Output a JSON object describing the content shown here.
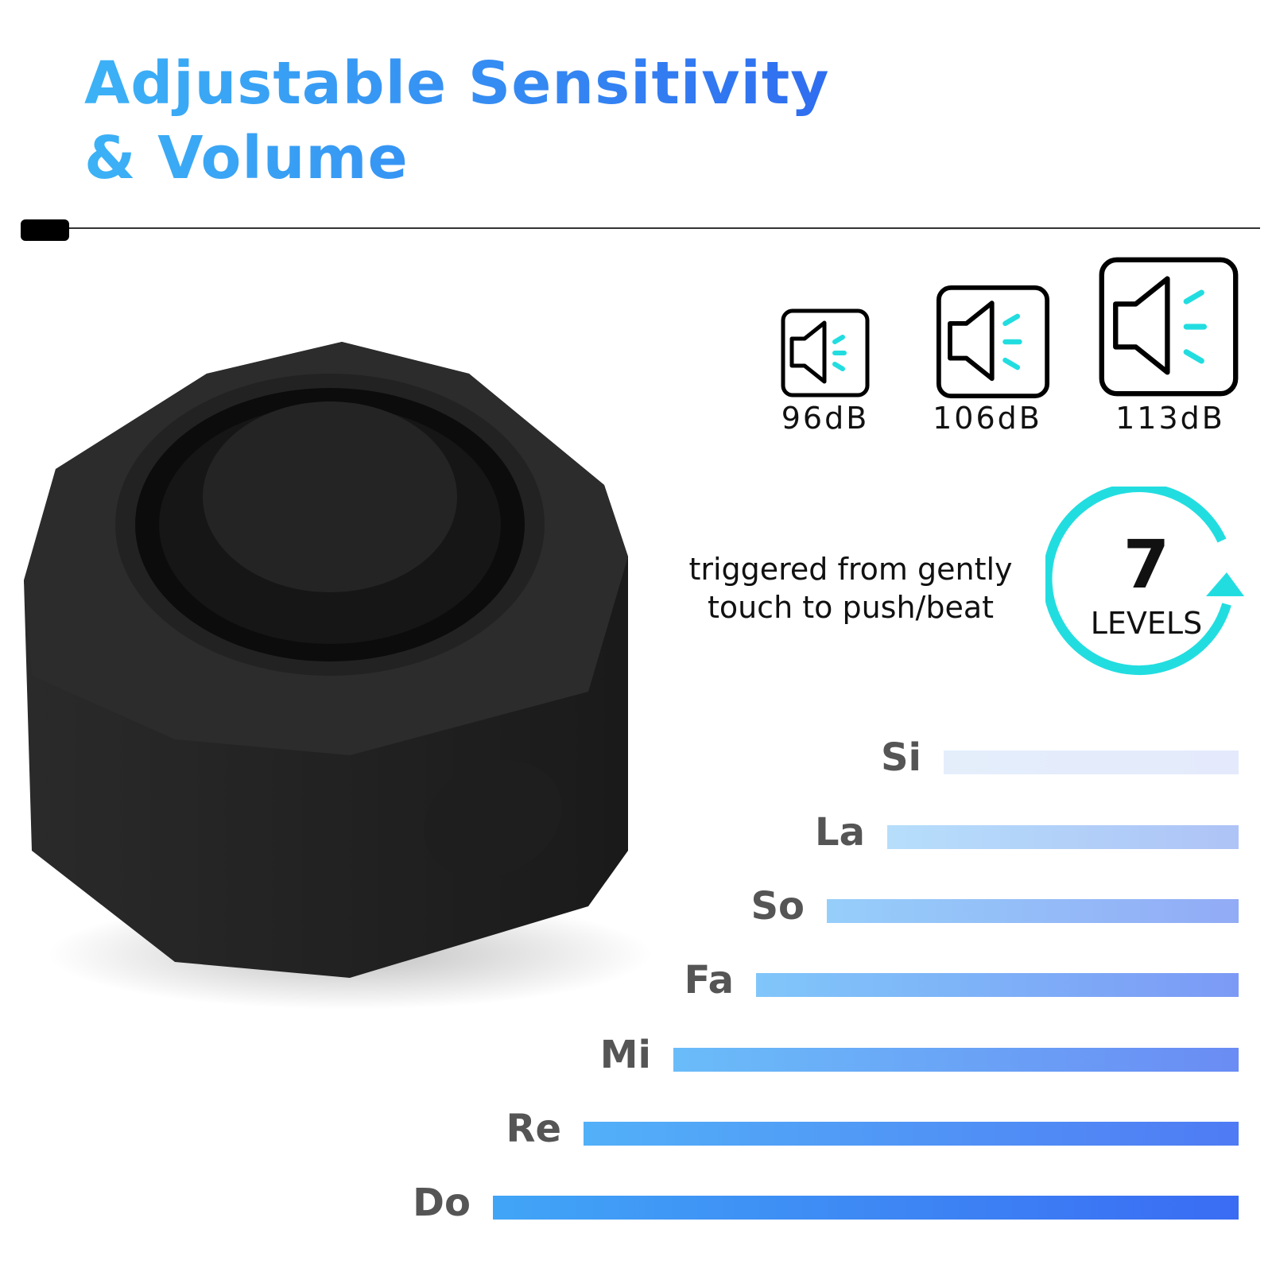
{
  "title": {
    "line1": "Adjustable Sensitivity",
    "line2": "& Volume"
  },
  "volume_levels": [
    {
      "label": "96dB",
      "icon": "speaker-volume-icon"
    },
    {
      "label": "106dB",
      "icon": "speaker-volume-icon"
    },
    {
      "label": "113dB",
      "icon": "speaker-volume-icon"
    }
  ],
  "sensitivity": {
    "line1": "triggered from gently",
    "line2": "touch to push/beat"
  },
  "levels": {
    "number": "7",
    "label": "LEVELS",
    "icon": "cycle-arrow-icon"
  },
  "notes": [
    {
      "label": "Si",
      "from": "#e4eefb",
      "to": "#e4eafb"
    },
    {
      "label": "La",
      "from": "#b6defb",
      "to": "#aec3f6"
    },
    {
      "label": "So",
      "from": "#96cefa",
      "to": "#92abf6"
    },
    {
      "label": "Fa",
      "from": "#80c6fa",
      "to": "#7c9af5"
    },
    {
      "label": "Mi",
      "from": "#6abcf9",
      "to": "#6a8cf4"
    },
    {
      "label": "Re",
      "from": "#52b0f8",
      "to": "#4f7bf4"
    },
    {
      "label": "Do",
      "from": "#41a5f6",
      "to": "#3a6cf3"
    }
  ],
  "colors": {
    "accent_cyan": "#22dde0",
    "title_light": "#3cb2f6",
    "title_dark": "#2f6df0"
  }
}
